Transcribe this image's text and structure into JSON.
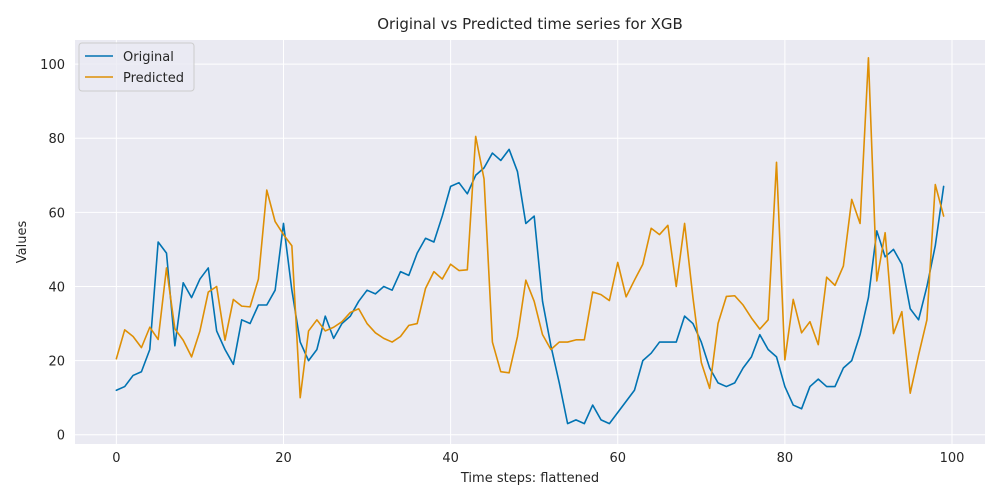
{
  "chart_data": {
    "type": "line",
    "title": "Original vs Predicted time series for XGB",
    "xlabel": "Time steps: flattened",
    "ylabel": "Values",
    "xlim": [
      -4.95,
      103.95
    ],
    "ylim": [
      -2.5,
      106.5
    ],
    "xticks": [
      0,
      20,
      40,
      60,
      80,
      100
    ],
    "yticks": [
      0,
      20,
      40,
      60,
      80,
      100
    ],
    "grid": true,
    "legend_position": "top-left",
    "background": "#eaeaf2",
    "x": [
      0,
      1,
      2,
      3,
      4,
      5,
      6,
      7,
      8,
      9,
      10,
      11,
      12,
      13,
      14,
      15,
      16,
      17,
      18,
      19,
      20,
      21,
      22,
      23,
      24,
      25,
      26,
      27,
      28,
      29,
      30,
      31,
      32,
      33,
      34,
      35,
      36,
      37,
      38,
      39,
      40,
      41,
      42,
      43,
      44,
      45,
      46,
      47,
      48,
      49,
      50,
      51,
      52,
      53,
      54,
      55,
      56,
      57,
      58,
      59,
      60,
      61,
      62,
      63,
      64,
      65,
      66,
      67,
      68,
      69,
      70,
      71,
      72,
      73,
      74,
      75,
      76,
      77,
      78,
      79,
      80,
      81,
      82,
      83,
      84,
      85,
      86,
      87,
      88,
      89,
      90,
      91,
      92,
      93,
      94,
      95,
      96,
      97,
      98,
      99
    ],
    "series": [
      {
        "name": "Original",
        "color": "#0173b2",
        "values": [
          12,
          13,
          16,
          17,
          23,
          52,
          49,
          24,
          41,
          37,
          42,
          45,
          28,
          23,
          19,
          31,
          30,
          35,
          35,
          39,
          57,
          39,
          25,
          20,
          23,
          32,
          26,
          30,
          32,
          36,
          39,
          38,
          40,
          39,
          44,
          43,
          49,
          53,
          52,
          59,
          67,
          68,
          65,
          70,
          72,
          76,
          74,
          77,
          71,
          57,
          59,
          36,
          24,
          14,
          3,
          4,
          3,
          8,
          4,
          3,
          6,
          9,
          12,
          20,
          22,
          25,
          25,
          25,
          32,
          30,
          25,
          18,
          14,
          13,
          14,
          18,
          21,
          27,
          23,
          21,
          13,
          8,
          7,
          13,
          15,
          13,
          13,
          18,
          20,
          27,
          37,
          55,
          48,
          50,
          46,
          34,
          31,
          40,
          51,
          67
        ]
      },
      {
        "name": "Predicted",
        "color": "#de8f05",
        "values": [
          20.5,
          28.3,
          26.5,
          23.5,
          29,
          25.7,
          45,
          28.6,
          25.5,
          21,
          28,
          38.5,
          40,
          25.5,
          36.5,
          34.7,
          34.5,
          42,
          66,
          57.5,
          54,
          51,
          10,
          28,
          31,
          28,
          29,
          30.5,
          33,
          34,
          30,
          27.5,
          26,
          25,
          26.5,
          29.5,
          30,
          39.5,
          44,
          42,
          46,
          44.3,
          44.5,
          80.5,
          69,
          25,
          17,
          16.7,
          26.5,
          41.7,
          36,
          27,
          23,
          25,
          25,
          25.6,
          25.6,
          38.5,
          37.8,
          36.2,
          46.5,
          37.2,
          41.7,
          46,
          55.7,
          54,
          56.5,
          40,
          57,
          37,
          19.5,
          12.5,
          30,
          37.3,
          37.5,
          35,
          31.5,
          28.5,
          31,
          73.5,
          20.2,
          36.5,
          27.5,
          30.5,
          24.3,
          42.5,
          40.3,
          45.5,
          63.5,
          57,
          101.7,
          41.5,
          54.5,
          27.3,
          33.2,
          11.2,
          21.5,
          31,
          67.5,
          59
        ]
      }
    ]
  }
}
